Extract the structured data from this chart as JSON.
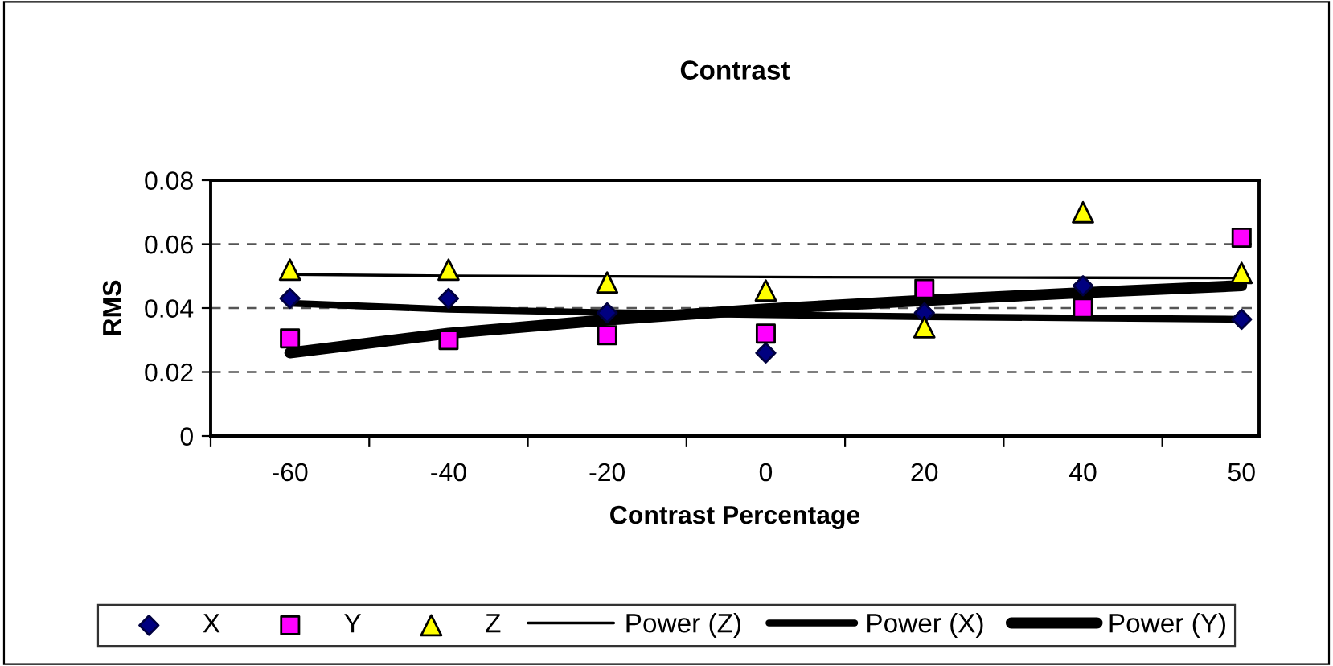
{
  "chart_data": {
    "type": "scatter",
    "title": "Contrast",
    "xlabel": "Contrast Percentage",
    "ylabel": "RMS",
    "categories": [
      "-60",
      "-40",
      "-20",
      "0",
      "20",
      "40",
      "50"
    ],
    "ylim": [
      0,
      0.08
    ],
    "yticks": [
      0,
      0.02,
      0.04,
      0.06,
      0.08
    ],
    "grid": "y",
    "legend": "bottom",
    "series": [
      {
        "name": "X",
        "marker": "diamond",
        "color": "#000080",
        "values": [
          0.043,
          0.043,
          0.0385,
          0.026,
          0.0385,
          0.047,
          0.0365
        ]
      },
      {
        "name": "Y",
        "marker": "square",
        "color": "#ff00ff",
        "values": [
          0.0305,
          0.03,
          0.0315,
          0.032,
          0.046,
          0.04,
          0.062
        ]
      },
      {
        "name": "Z",
        "marker": "triangle",
        "color": "#ffff00",
        "values": [
          0.052,
          0.052,
          0.048,
          0.0455,
          0.034,
          0.07,
          0.051
        ]
      },
      {
        "name": "Power (Z)",
        "type": "line",
        "marker": "none",
        "line_style": "solid",
        "color": "#000000",
        "values": [
          0.0505,
          0.0501,
          0.0499,
          0.0497,
          0.0496,
          0.0495,
          0.0494
        ]
      },
      {
        "name": "Power (X)",
        "type": "line",
        "marker": "none",
        "line_style": "solid",
        "color": "#000000",
        "values": [
          0.0415,
          0.0396,
          0.0386,
          0.0379,
          0.0373,
          0.0369,
          0.0365
        ]
      },
      {
        "name": "Power (Y)",
        "type": "line",
        "marker": "none",
        "line_style": "solid",
        "color": "#000000",
        "values": [
          0.026,
          0.0321,
          0.0363,
          0.0397,
          0.0424,
          0.0448,
          0.047
        ]
      }
    ]
  }
}
